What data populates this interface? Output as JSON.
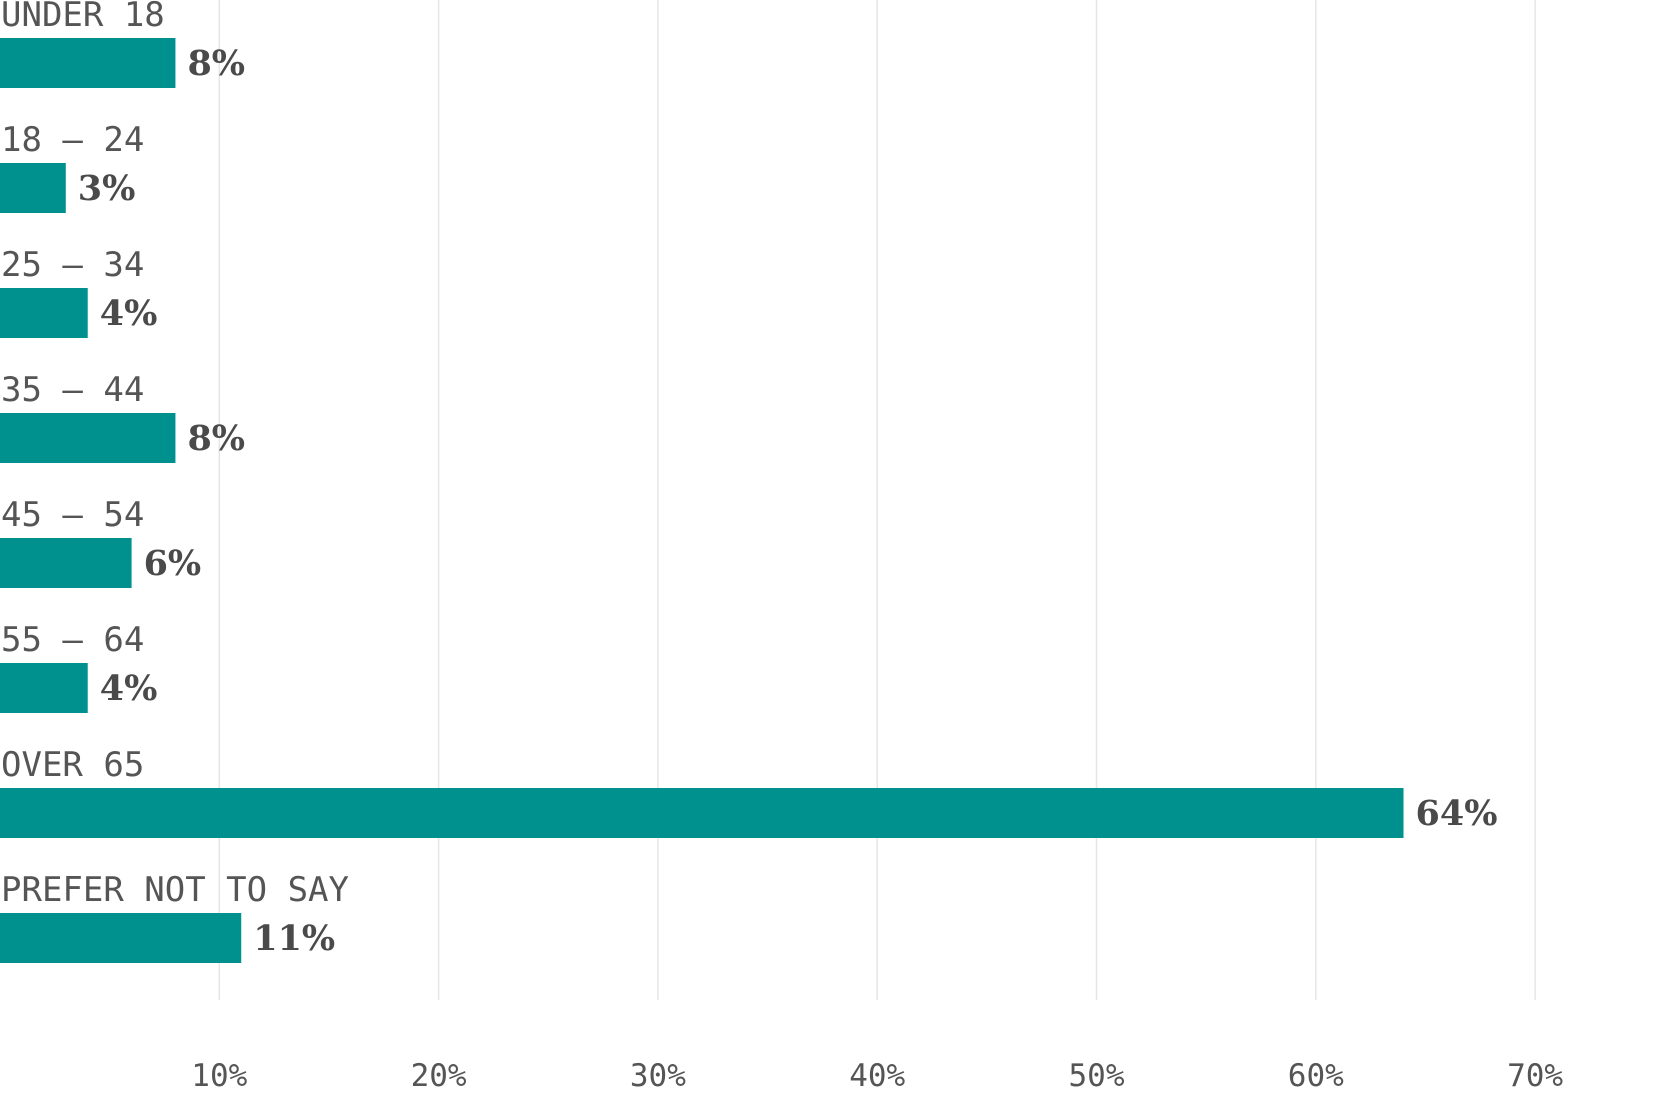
{
  "chart_data": {
    "type": "bar",
    "orientation": "horizontal",
    "categories": [
      "UNDER 18",
      "18 – 24",
      "25 – 34",
      "35 – 44",
      "45 – 54",
      "55 – 64",
      "OVER 65",
      "PREFER NOT TO SAY"
    ],
    "values": [
      8,
      3,
      4,
      8,
      6,
      4,
      64,
      11
    ],
    "value_labels": [
      "8%",
      "3%",
      "4%",
      "8%",
      "6%",
      "4%",
      "64%",
      "11%"
    ],
    "x_ticks": [
      10,
      20,
      30,
      40,
      50,
      60,
      70
    ],
    "x_tick_labels": [
      "10%",
      "20%",
      "30%",
      "40%",
      "50%",
      "60%",
      "70%"
    ],
    "xlim": [
      0,
      70
    ],
    "title": "",
    "xlabel": "",
    "ylabel": "",
    "grid": "vertical",
    "legend": "none",
    "bar_color": "#00908e",
    "grid_color": "#e6e6e6",
    "label_color": "#555555",
    "value_label_color": "#4a4a4a"
  }
}
